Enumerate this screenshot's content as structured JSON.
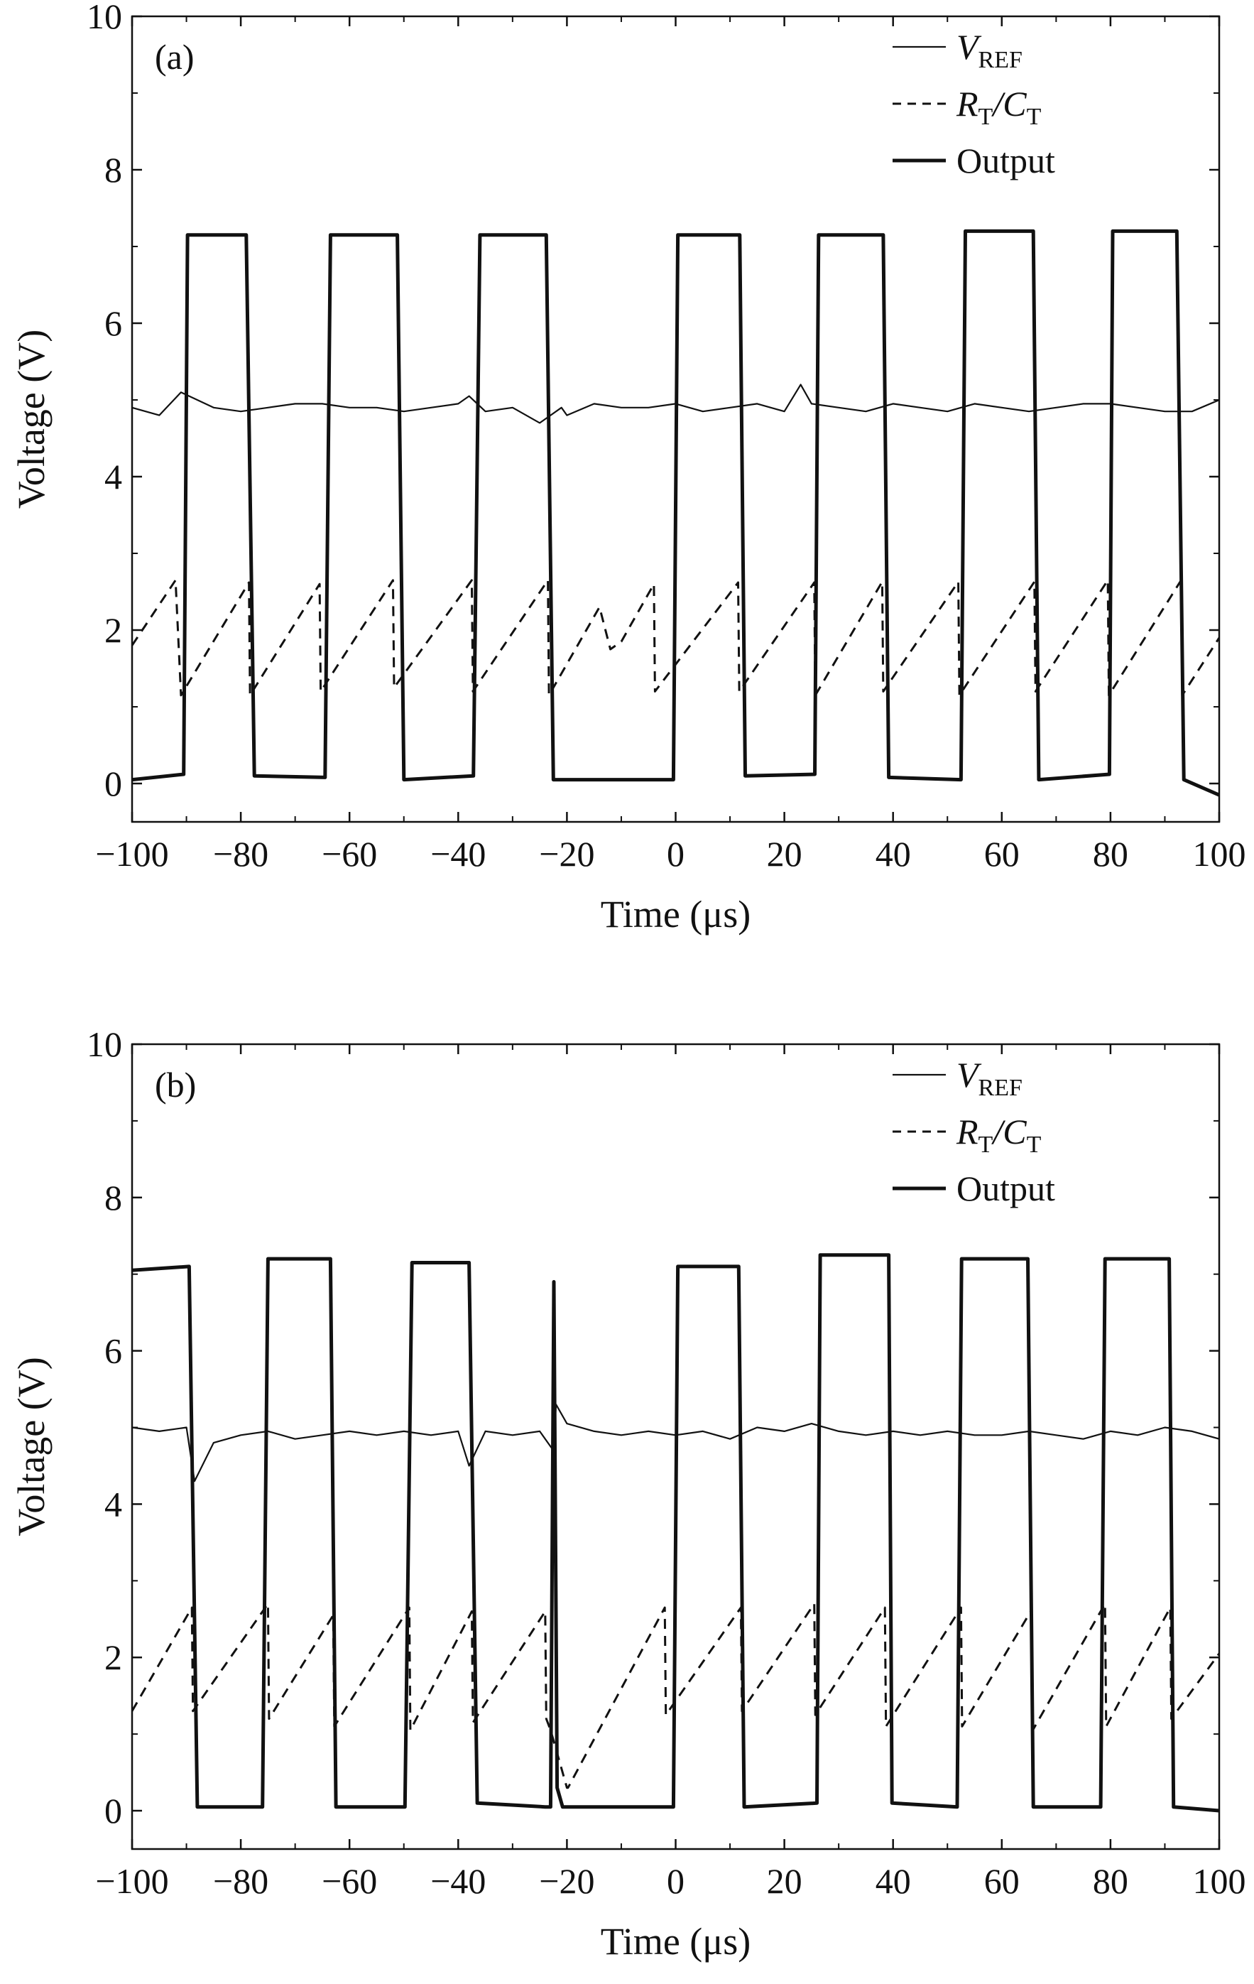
{
  "chart_data": [
    {
      "type": "line",
      "panel_label": "(a)",
      "xlabel": "Time (μs)",
      "ylabel": "Voltage (V)",
      "xlim": [
        -100,
        100
      ],
      "ylim": [
        -0.5,
        10
      ],
      "xticks": [
        -100,
        -80,
        -60,
        -40,
        -20,
        0,
        20,
        40,
        60,
        80,
        100
      ],
      "yticks": [
        0,
        2,
        4,
        6,
        8,
        10
      ],
      "x_tick_labels": [
        "−100",
        "−80",
        "−60",
        "−40",
        "−20",
        "0",
        "20",
        "40",
        "60",
        "80",
        "100"
      ],
      "y_tick_labels": [
        "0",
        "2",
        "4",
        "6",
        "8",
        "10"
      ],
      "legend_position": "top-right",
      "series": [
        {
          "name": "V_REF",
          "legend": {
            "main": "V",
            "sub": "REF",
            "main2": "",
            "sub2": ""
          },
          "style": "thin-solid",
          "x": [
            -100,
            -95,
            -91,
            -85,
            -80,
            -75,
            -70,
            -65,
            -60,
            -55,
            -50,
            -45,
            -40,
            -38,
            -35,
            -30,
            -25,
            -21,
            -20,
            -15,
            -10,
            -5,
            0,
            5,
            10,
            15,
            20,
            23,
            25,
            30,
            35,
            40,
            45,
            50,
            55,
            60,
            65,
            70,
            75,
            80,
            85,
            90,
            95,
            100
          ],
          "y": [
            4.9,
            4.8,
            5.1,
            4.9,
            4.85,
            4.9,
            4.95,
            4.95,
            4.9,
            4.9,
            4.85,
            4.9,
            4.95,
            5.05,
            4.85,
            4.9,
            4.7,
            4.9,
            4.8,
            4.95,
            4.9,
            4.9,
            4.95,
            4.85,
            4.9,
            4.95,
            4.85,
            5.2,
            4.95,
            4.9,
            4.85,
            4.95,
            4.9,
            4.85,
            4.95,
            4.9,
            4.85,
            4.9,
            4.95,
            4.95,
            4.9,
            4.85,
            4.85,
            5.0
          ]
        },
        {
          "name": "R_T/C_T",
          "legend": {
            "main": "R",
            "sub": "T",
            "main2": "/C",
            "sub2": "T"
          },
          "style": "dashed",
          "x": [
            -100,
            -92,
            -91,
            -78.5,
            -78.3,
            -65.5,
            -65.3,
            -52,
            -51.8,
            -37.5,
            -37.3,
            -23.5,
            -23.3,
            -14,
            -12,
            -10,
            -4,
            -3.8,
            11.5,
            11.7,
            25.5,
            25.7,
            38,
            38.2,
            52,
            52.2,
            66,
            66.2,
            79.5,
            79.7,
            93,
            93.2,
            100
          ],
          "y": [
            1.8,
            2.65,
            1.15,
            2.62,
            1.15,
            2.6,
            1.2,
            2.65,
            1.25,
            2.65,
            1.2,
            2.65,
            1.15,
            2.3,
            1.75,
            1.85,
            2.6,
            1.2,
            2.62,
            1.2,
            2.62,
            1.15,
            2.63,
            1.2,
            2.63,
            1.15,
            2.63,
            1.2,
            2.65,
            1.15,
            2.65,
            1.15,
            1.9
          ]
        },
        {
          "name": "Output",
          "legend": {
            "main": "Output",
            "sub": "",
            "main2": "",
            "sub2": ""
          },
          "style": "thick-solid",
          "x": [
            -100,
            -90.5,
            -89.8,
            -79,
            -77.5,
            -64.5,
            -63.5,
            -51.2,
            -50,
            -37.2,
            -36,
            -23.8,
            -22.5,
            -0.4,
            0.4,
            11.8,
            12.8,
            25.6,
            26.3,
            38.2,
            39.2,
            52.5,
            53.3,
            65.8,
            66.8,
            79.8,
            80.4,
            92.2,
            93.5,
            100
          ],
          "y": [
            0.05,
            0.12,
            7.15,
            7.15,
            0.1,
            0.08,
            7.15,
            7.15,
            0.05,
            0.1,
            7.15,
            7.15,
            0.05,
            0.05,
            7.15,
            7.15,
            0.1,
            0.12,
            7.15,
            7.15,
            0.08,
            0.05,
            7.2,
            7.2,
            0.05,
            0.12,
            7.2,
            7.2,
            0.05,
            -0.15
          ]
        }
      ]
    },
    {
      "type": "line",
      "panel_label": "(b)",
      "xlabel": "Time (μs)",
      "ylabel": "Voltage (V)",
      "xlim": [
        -100,
        100
      ],
      "ylim": [
        -0.5,
        10
      ],
      "xticks": [
        -100,
        -80,
        -60,
        -40,
        -20,
        0,
        20,
        40,
        60,
        80,
        100
      ],
      "yticks": [
        0,
        2,
        4,
        6,
        8,
        10
      ],
      "x_tick_labels": [
        "−100",
        "−80",
        "−60",
        "−40",
        "−20",
        "0",
        "20",
        "40",
        "60",
        "80",
        "100"
      ],
      "y_tick_labels": [
        "0",
        "2",
        "4",
        "6",
        "8",
        "10"
      ],
      "legend_position": "top-right",
      "series": [
        {
          "name": "V_REF",
          "legend": {
            "main": "V",
            "sub": "REF",
            "main2": "",
            "sub2": ""
          },
          "style": "thin-solid",
          "x": [
            -100,
            -95,
            -90,
            -88.5,
            -85,
            -80,
            -75,
            -70,
            -65,
            -60,
            -55,
            -50,
            -45,
            -40,
            -38,
            -35,
            -30,
            -25,
            -22.5,
            -22,
            -20,
            -15,
            -10,
            -5,
            0,
            5,
            10,
            15,
            20,
            25,
            30,
            35,
            40,
            45,
            50,
            55,
            60,
            65,
            70,
            75,
            80,
            85,
            90,
            95,
            100
          ],
          "y": [
            5.0,
            4.95,
            5.0,
            4.3,
            4.8,
            4.9,
            4.95,
            4.85,
            4.9,
            4.95,
            4.9,
            4.95,
            4.9,
            4.95,
            4.5,
            4.95,
            4.9,
            4.95,
            4.7,
            5.3,
            5.05,
            4.95,
            4.9,
            4.95,
            4.9,
            4.95,
            4.85,
            5.0,
            4.95,
            5.05,
            4.95,
            4.9,
            4.95,
            4.9,
            4.95,
            4.9,
            4.9,
            4.95,
            4.9,
            4.85,
            4.95,
            4.9,
            5.0,
            4.95,
            4.85
          ]
        },
        {
          "name": "R_T/C_T",
          "legend": {
            "main": "R",
            "sub": "T",
            "main2": "/C",
            "sub2": "T"
          },
          "style": "dashed",
          "x": [
            -100,
            -89,
            -88.8,
            -75,
            -74.8,
            -63,
            -62.8,
            -49,
            -48.8,
            -37.5,
            -37.3,
            -24,
            -23.8,
            -23,
            -20,
            -19.8,
            -2,
            -1.8,
            12,
            12.2,
            25.5,
            25.7,
            38.5,
            38.7,
            52.5,
            52.7,
            65.5,
            65.7,
            79,
            79.2,
            91,
            91.2,
            100
          ],
          "y": [
            1.3,
            2.65,
            1.3,
            2.7,
            1.2,
            2.55,
            1.1,
            2.65,
            1.05,
            2.6,
            1.15,
            2.6,
            1.2,
            1.05,
            0.3,
            0.3,
            2.65,
            1.25,
            2.65,
            1.3,
            2.7,
            1.25,
            2.65,
            1.1,
            2.65,
            1.1,
            2.62,
            1.05,
            2.7,
            1.1,
            2.65,
            1.2,
            2.05
          ]
        },
        {
          "name": "Output",
          "legend": {
            "main": "Output",
            "sub": "",
            "main2": "",
            "sub2": ""
          },
          "style": "thick-solid",
          "x": [
            -100,
            -89.5,
            -88,
            -76,
            -75,
            -63.5,
            -62.5,
            -49.8,
            -48.5,
            -38,
            -36.5,
            -24,
            -23,
            -22.4,
            -21.8,
            -20.8,
            -0.4,
            0.4,
            11.6,
            12.6,
            26,
            26.6,
            39.2,
            39.8,
            51.8,
            52.6,
            64.8,
            65.8,
            78.2,
            79,
            90.8,
            91.6,
            100
          ],
          "y": [
            7.05,
            7.1,
            0.05,
            0.05,
            7.2,
            7.2,
            0.05,
            0.05,
            7.15,
            7.15,
            0.1,
            0.05,
            0.05,
            6.9,
            0.3,
            0.05,
            0.05,
            7.1,
            7.1,
            0.05,
            0.1,
            7.25,
            7.25,
            0.1,
            0.05,
            7.2,
            7.2,
            0.05,
            0.05,
            7.2,
            7.2,
            0.05,
            0.0
          ]
        }
      ]
    }
  ]
}
